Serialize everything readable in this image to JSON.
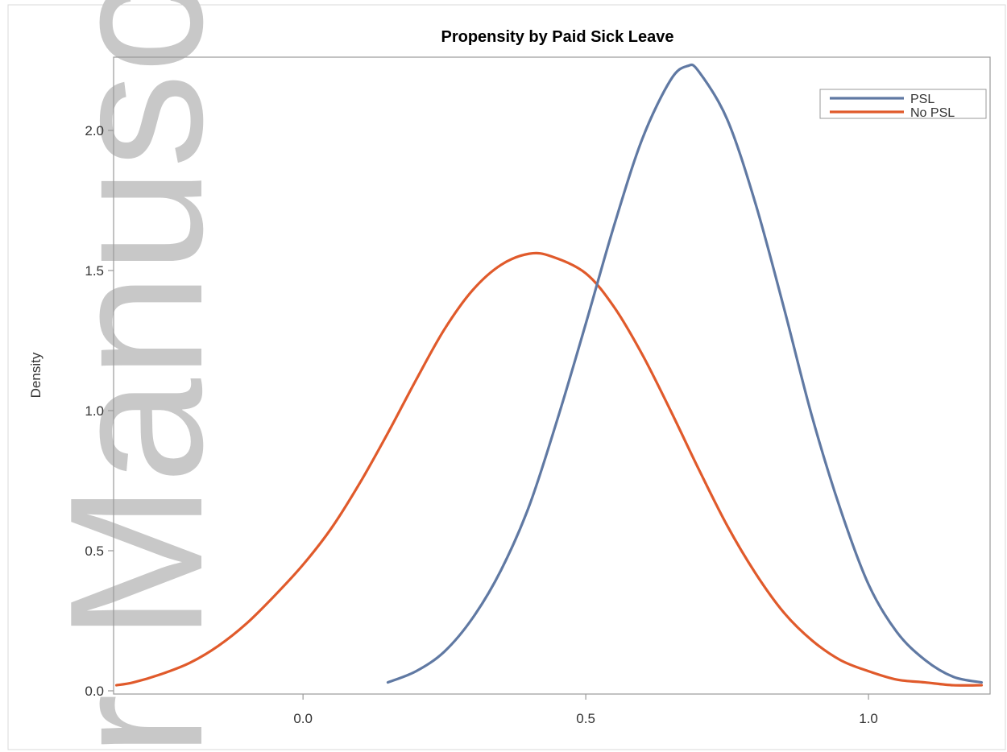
{
  "chart_data": {
    "type": "line",
    "title": "Propensity by Paid Sick Leave",
    "xlabel": "",
    "ylabel": "Density",
    "xlim": [
      -0.335,
      1.215
    ],
    "ylim": [
      0,
      2.25
    ],
    "x_ticks": [
      0.0,
      0.5,
      1.0
    ],
    "x_tick_labels": [
      "0.0",
      "0.5",
      "1.0"
    ],
    "y_ticks": [
      0.0,
      0.5,
      1.0,
      1.5,
      2.0
    ],
    "y_tick_labels": [
      "0.0",
      "0.5",
      "1.0",
      "1.5",
      "2.0"
    ],
    "grid": false,
    "legend_position": "top-right",
    "series": [
      {
        "name": "PSL",
        "color": "#6079a3",
        "x": [
          0.15,
          0.2,
          0.25,
          0.3,
          0.35,
          0.4,
          0.45,
          0.5,
          0.55,
          0.6,
          0.65,
          0.68,
          0.7,
          0.75,
          0.8,
          0.85,
          0.9,
          0.95,
          1.0,
          1.05,
          1.1,
          1.15,
          1.2
        ],
        "y": [
          0.03,
          0.07,
          0.14,
          0.26,
          0.43,
          0.66,
          0.97,
          1.31,
          1.66,
          1.97,
          2.18,
          2.23,
          2.21,
          2.04,
          1.74,
          1.37,
          0.98,
          0.65,
          0.38,
          0.21,
          0.11,
          0.05,
          0.03
        ]
      },
      {
        "name": "No PSL",
        "color": "#e05a2b",
        "x": [
          -0.33,
          -0.3,
          -0.25,
          -0.2,
          -0.15,
          -0.1,
          -0.05,
          0.0,
          0.05,
          0.1,
          0.15,
          0.2,
          0.25,
          0.3,
          0.35,
          0.4,
          0.44,
          0.5,
          0.55,
          0.6,
          0.65,
          0.7,
          0.75,
          0.8,
          0.85,
          0.9,
          0.95,
          1.0,
          1.05,
          1.1,
          1.15,
          1.2
        ],
        "y": [
          0.02,
          0.03,
          0.06,
          0.1,
          0.16,
          0.24,
          0.34,
          0.45,
          0.58,
          0.74,
          0.92,
          1.11,
          1.29,
          1.43,
          1.52,
          1.56,
          1.55,
          1.49,
          1.37,
          1.2,
          1.0,
          0.79,
          0.59,
          0.42,
          0.28,
          0.18,
          0.11,
          0.07,
          0.04,
          0.03,
          0.02,
          0.02
        ]
      }
    ]
  },
  "watermark": {
    "text": "r Manuscript",
    "color": "#c8c8c8"
  }
}
